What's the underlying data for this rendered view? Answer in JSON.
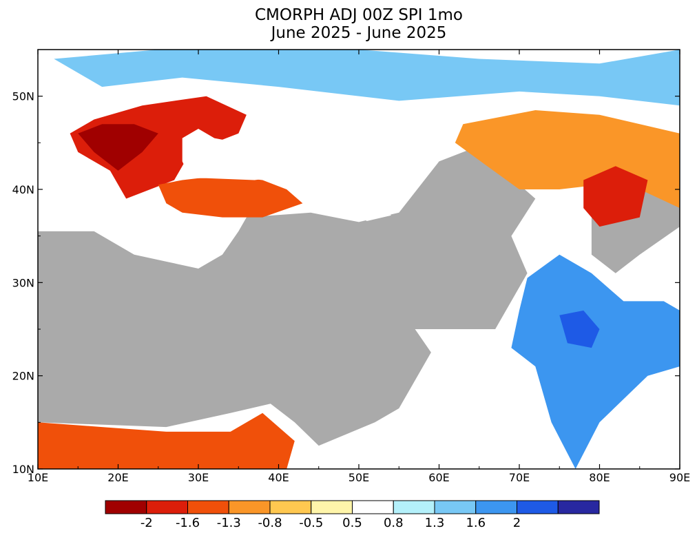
{
  "chart_data": {
    "type": "heatmap",
    "title": "CMORPH ADJ 00Z SPI 1mo",
    "subtitle": "June 2025 - June 2025",
    "xlabel": "",
    "ylabel": "",
    "xlim": [
      10,
      90
    ],
    "ylim": [
      10,
      55
    ],
    "x_ticks": [
      {
        "value": 10,
        "label": "10E"
      },
      {
        "value": 20,
        "label": "20E"
      },
      {
        "value": 30,
        "label": "30E"
      },
      {
        "value": 40,
        "label": "40E"
      },
      {
        "value": 50,
        "label": "50E"
      },
      {
        "value": 60,
        "label": "60E"
      },
      {
        "value": 70,
        "label": "70E"
      },
      {
        "value": 80,
        "label": "80E"
      },
      {
        "value": 90,
        "label": "90E"
      }
    ],
    "y_ticks": [
      {
        "value": 10,
        "label": "10N"
      },
      {
        "value": 20,
        "label": "20N"
      },
      {
        "value": 30,
        "label": "30N"
      },
      {
        "value": 40,
        "label": "40N"
      },
      {
        "value": 50,
        "label": "50N"
      }
    ],
    "grid": false,
    "legend": "bottom colorbar",
    "colorbar": {
      "labels": [
        "-2",
        "-1.6",
        "-1.3",
        "-0.8",
        "-0.5",
        "0.5",
        "0.8",
        "1.3",
        "1.6",
        "2"
      ],
      "colors": [
        "#a00000",
        "#dc1e0a",
        "#f0500a",
        "#fa9628",
        "#ffc850",
        "#fff5aa",
        "#ffffff",
        "#b4f0fa",
        "#78c8f5",
        "#3c96f0",
        "#1e5ae6",
        "#2828a0"
      ]
    },
    "regions": [
      {
        "name": "no-data-middle-east",
        "value": "no data",
        "color": "#aaaaaa",
        "lonlat": [
          [
            10,
            35.5
          ],
          [
            17,
            35.5
          ],
          [
            22,
            33
          ],
          [
            30,
            31.5
          ],
          [
            33,
            33
          ],
          [
            35,
            35.5
          ],
          [
            36,
            37
          ],
          [
            44,
            37.5
          ],
          [
            50,
            36.5
          ],
          [
            55,
            37.5
          ],
          [
            60,
            43
          ],
          [
            66,
            45
          ],
          [
            68,
            42
          ],
          [
            72,
            39
          ],
          [
            69,
            35
          ],
          [
            71,
            31
          ],
          [
            67,
            25
          ],
          [
            57,
            25
          ],
          [
            59,
            22.5
          ],
          [
            55,
            16.5
          ],
          [
            52,
            15
          ],
          [
            45,
            12.5
          ],
          [
            42,
            15
          ],
          [
            39,
            17
          ],
          [
            34,
            16
          ],
          [
            26,
            14.5
          ],
          [
            10,
            15
          ]
        ]
      },
      {
        "name": "no-data-west-china",
        "value": "no data",
        "color": "#aaaaaa",
        "lonlat": [
          [
            79,
            37
          ],
          [
            86,
            40
          ],
          [
            90,
            40.5
          ],
          [
            90,
            36
          ],
          [
            85,
            33
          ],
          [
            82,
            31
          ],
          [
            79,
            33
          ]
        ]
      },
      {
        "name": "balkans-black-sea-dry",
        "value": -1.8,
        "color": "#dc1e0a",
        "lonlat": [
          [
            14,
            46
          ],
          [
            17,
            47.5
          ],
          [
            23,
            49
          ],
          [
            31,
            50
          ],
          [
            36,
            48
          ],
          [
            35,
            46
          ],
          [
            29,
            44
          ],
          [
            27,
            41
          ],
          [
            24,
            40
          ],
          [
            21,
            39
          ],
          [
            19,
            42
          ],
          [
            15,
            44
          ]
        ]
      },
      {
        "name": "balkans-core-very-dry",
        "value": -2.2,
        "color": "#a00000",
        "lonlat": [
          [
            15,
            46
          ],
          [
            18,
            47
          ],
          [
            22,
            47
          ],
          [
            25,
            46
          ],
          [
            23,
            44
          ],
          [
            20,
            42
          ],
          [
            17,
            44
          ]
        ]
      },
      {
        "name": "anatolia-dry",
        "value": -1.5,
        "color": "#f0500a",
        "lonlat": [
          [
            25,
            40.5
          ],
          [
            28,
            41
          ],
          [
            33,
            41.5
          ],
          [
            38,
            41
          ],
          [
            41,
            40
          ],
          [
            43,
            38.5
          ],
          [
            38,
            37
          ],
          [
            33,
            37
          ],
          [
            28,
            37.5
          ],
          [
            26,
            38.5
          ]
        ]
      },
      {
        "name": "central-asia-dry",
        "value": -1.1,
        "color": "#fa9628",
        "lonlat": [
          [
            63,
            47
          ],
          [
            72,
            48.5
          ],
          [
            80,
            48
          ],
          [
            90,
            46
          ],
          [
            90,
            38
          ],
          [
            85,
            40
          ],
          [
            80,
            40.5
          ],
          [
            75,
            40
          ],
          [
            70,
            40
          ],
          [
            66,
            42.5
          ],
          [
            62,
            45
          ]
        ]
      },
      {
        "name": "western-china-very-dry",
        "value": -1.7,
        "color": "#dc1e0a",
        "lonlat": [
          [
            78,
            41
          ],
          [
            82,
            42.5
          ],
          [
            86,
            41
          ],
          [
            85,
            37
          ],
          [
            80,
            36
          ],
          [
            78,
            38
          ]
        ]
      },
      {
        "name": "sahel-dry",
        "value": -1.4,
        "color": "#f0500a",
        "lonlat": [
          [
            10,
            15
          ],
          [
            18,
            14.5
          ],
          [
            26,
            14
          ],
          [
            34,
            14
          ],
          [
            38,
            16
          ],
          [
            42,
            13
          ],
          [
            41,
            10
          ],
          [
            10,
            10
          ]
        ]
      },
      {
        "name": "india-wet",
        "value": 1.5,
        "color": "#3c96f0",
        "lonlat": [
          [
            71,
            30.5
          ],
          [
            75,
            33
          ],
          [
            79,
            31
          ],
          [
            83,
            28
          ],
          [
            88,
            28
          ],
          [
            90,
            27
          ],
          [
            90,
            21
          ],
          [
            86,
            20
          ],
          [
            80,
            15
          ],
          [
            77,
            10
          ],
          [
            74,
            15
          ],
          [
            72,
            21
          ],
          [
            69,
            23
          ],
          [
            70,
            27
          ]
        ]
      },
      {
        "name": "central-india-very-wet",
        "value": 2.0,
        "color": "#1e5ae6",
        "lonlat": [
          [
            75,
            26.5
          ],
          [
            78,
            27
          ],
          [
            80,
            25
          ],
          [
            79,
            23
          ],
          [
            76,
            23.5
          ]
        ]
      },
      {
        "name": "northern-eurasia-wet",
        "value": 0.9,
        "color": "#78c8f5",
        "lonlat": [
          [
            12,
            54
          ],
          [
            25,
            55
          ],
          [
            50,
            55
          ],
          [
            65,
            54
          ],
          [
            80,
            53.5
          ],
          [
            90,
            55
          ],
          [
            90,
            49
          ],
          [
            80,
            50
          ],
          [
            70,
            50.5
          ],
          [
            55,
            49.5
          ],
          [
            40,
            51
          ],
          [
            28,
            52
          ],
          [
            18,
            51
          ]
        ]
      },
      {
        "name": "caspian-sea",
        "value": "water",
        "color": "#ffffff",
        "lonlat": [
          [
            47,
            45
          ],
          [
            48,
            46.5
          ],
          [
            51,
            47.2
          ],
          [
            53,
            46
          ],
          [
            51,
            44.5
          ],
          [
            51,
            42
          ],
          [
            53,
            40
          ],
          [
            54,
            37.2
          ],
          [
            51,
            36.6
          ],
          [
            49,
            37.8
          ],
          [
            49.5,
            40.5
          ]
        ]
      },
      {
        "name": "black-sea",
        "value": "water",
        "color": "#ffffff",
        "lonlat": [
          [
            28,
            43
          ],
          [
            28,
            45.5
          ],
          [
            30,
            46.5
          ],
          [
            32,
            45.5
          ],
          [
            35,
            45
          ],
          [
            38,
            45
          ],
          [
            40,
            44
          ],
          [
            41.5,
            41.5
          ],
          [
            37,
            41
          ],
          [
            31,
            41.2
          ],
          [
            29,
            41.2
          ]
        ]
      }
    ]
  }
}
